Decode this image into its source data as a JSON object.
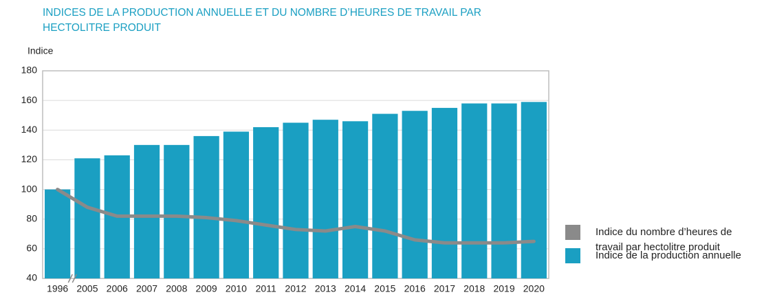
{
  "chart_data": {
    "type": "bar",
    "title": "INDICES DE LA PRODUCTION ANNUELLE ET DU NOMBRE D’HEURES DE TRAVAIL PAR HECTOLITRE PRODUIT",
    "y_label": "Indice",
    "categories": [
      "1996",
      "2005",
      "2006",
      "2007",
      "2008",
      "2009",
      "2010",
      "2011",
      "2012",
      "2013",
      "2014",
      "2015",
      "2016",
      "2017",
      "2018",
      "2019",
      "2020"
    ],
    "series": [
      {
        "name": "Indice du nombre d’heures de travail par hectolitre produit",
        "type": "line",
        "color": "#8a8a8a",
        "values": [
          100,
          88,
          82,
          82,
          82,
          81,
          79,
          76,
          73,
          72,
          75,
          72,
          66,
          64,
          64,
          64,
          65
        ]
      },
      {
        "name": "Indice de la production annuelle",
        "type": "bar",
        "color": "#1a9fc2",
        "values": [
          100,
          121,
          123,
          130,
          130,
          136,
          139,
          142,
          145,
          147,
          146,
          151,
          153,
          155,
          158,
          158,
          159
        ]
      }
    ],
    "ylim": [
      40,
      180
    ],
    "yticks": [
      40,
      60,
      80,
      100,
      120,
      140,
      160,
      180
    ],
    "grid": true
  }
}
